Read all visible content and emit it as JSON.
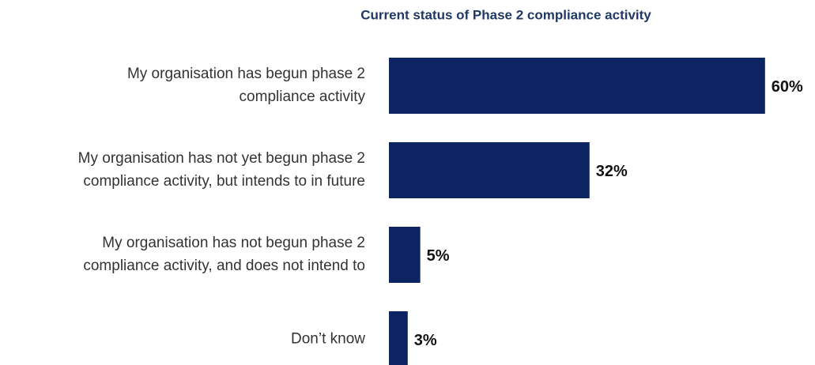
{
  "chart_data": {
    "type": "bar",
    "orientation": "horizontal",
    "title": "Current status of Phase 2 compliance activity",
    "categories": [
      [
        "My organisation has begun phase 2",
        "compliance activity"
      ],
      [
        "My organisation has not yet begun phase 2",
        "compliance activity, but intends to in future"
      ],
      [
        "My organisation has not begun phase 2",
        "compliance activity, and does not intend to"
      ],
      [
        "Don’t know"
      ]
    ],
    "values": [
      60,
      32,
      5,
      3
    ],
    "value_labels": [
      "60%",
      "32%",
      "5%",
      "3%"
    ],
    "color": "#0c2461"
  }
}
